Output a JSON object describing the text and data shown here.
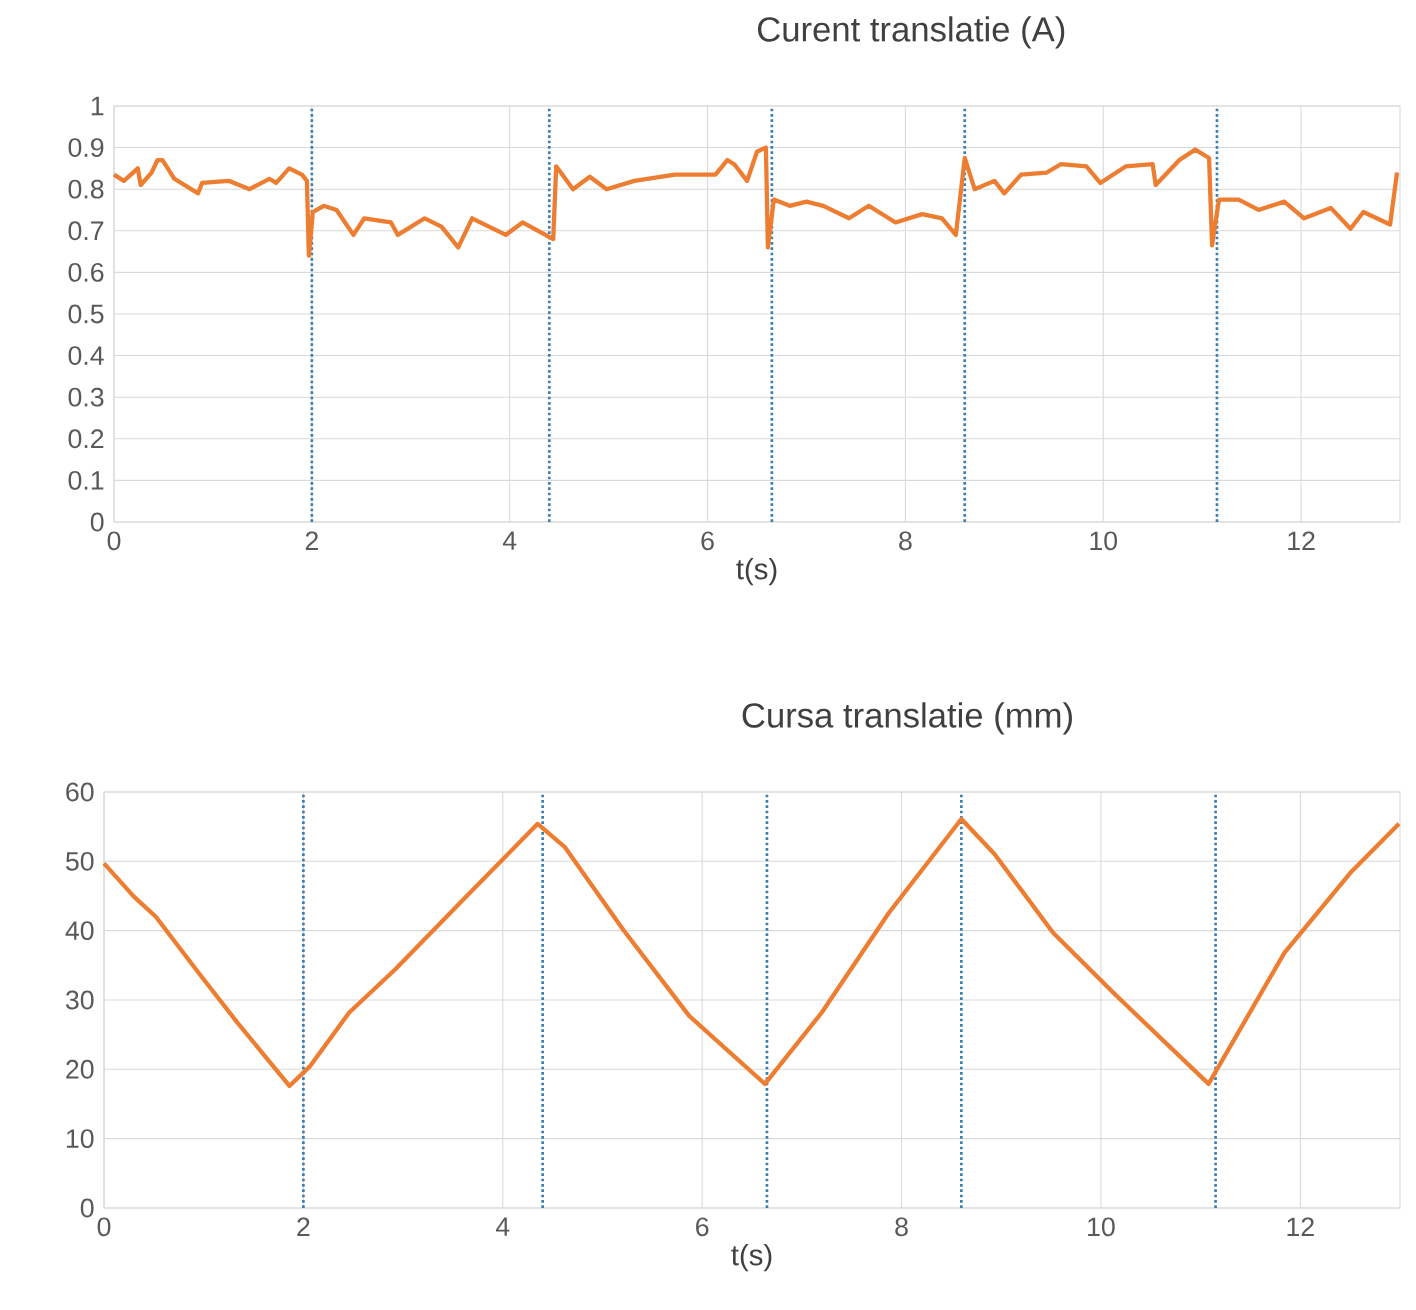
{
  "chart_data": [
    {
      "type": "line",
      "title": "Curent translatie (A)",
      "xlabel": "t(s)",
      "color": "#ed7d31",
      "grid": true,
      "x": [
        0,
        0.1,
        0.24,
        0.27,
        0.38,
        0.44,
        0.49,
        0.61,
        0.85,
        0.89,
        1.16,
        1.37,
        1.57,
        1.64,
        1.77,
        1.9,
        1.95,
        1.97,
        2.01,
        2.12,
        2.25,
        2.42,
        2.53,
        2.8,
        2.87,
        3.14,
        3.31,
        3.48,
        3.62,
        3.96,
        4.13,
        4.44,
        4.47,
        4.64,
        4.81,
        4.98,
        5.26,
        5.67,
        6.08,
        6.2,
        6.27,
        6.4,
        6.5,
        6.59,
        6.61,
        6.67,
        6.83,
        7.0,
        7.17,
        7.43,
        7.63,
        7.9,
        8.17,
        8.37,
        8.51,
        8.6,
        8.7,
        8.9,
        9.0,
        9.17,
        9.43,
        9.57,
        9.83,
        9.97,
        10.23,
        10.5,
        10.53,
        10.77,
        10.93,
        11.07,
        11.1,
        11.17,
        11.37,
        11.57,
        11.83,
        12.03,
        12.3,
        12.5,
        12.63,
        12.9,
        12.97
      ],
      "values": [
        0.835,
        0.82,
        0.85,
        0.81,
        0.84,
        0.87,
        0.87,
        0.825,
        0.79,
        0.815,
        0.82,
        0.8,
        0.825,
        0.815,
        0.85,
        0.835,
        0.82,
        0.64,
        0.745,
        0.76,
        0.75,
        0.69,
        0.73,
        0.72,
        0.69,
        0.73,
        0.71,
        0.66,
        0.73,
        0.69,
        0.72,
        0.68,
        0.855,
        0.8,
        0.83,
        0.8,
        0.82,
        0.835,
        0.835,
        0.87,
        0.86,
        0.82,
        0.89,
        0.9,
        0.66,
        0.775,
        0.76,
        0.77,
        0.76,
        0.73,
        0.76,
        0.72,
        0.74,
        0.73,
        0.69,
        0.875,
        0.8,
        0.82,
        0.79,
        0.835,
        0.84,
        0.86,
        0.855,
        0.815,
        0.855,
        0.86,
        0.81,
        0.87,
        0.895,
        0.875,
        0.665,
        0.775,
        0.775,
        0.75,
        0.77,
        0.73,
        0.755,
        0.705,
        0.745,
        0.715,
        0.84
      ],
      "xlim": [
        0,
        13
      ],
      "xticks": [
        0,
        2,
        4,
        6,
        8,
        10,
        12
      ],
      "ylim": [
        0,
        1
      ],
      "yticks": [
        0,
        0.1,
        0.2,
        0.3,
        0.4,
        0.5,
        0.6,
        0.7,
        0.8,
        0.9,
        1
      ],
      "ref_lines": [
        {
          "axis": "x",
          "value": 2.0,
          "color": "#3b7fb0",
          "line_style": "dotted"
        },
        {
          "axis": "x",
          "value": 4.4,
          "color": "#3b7fb0",
          "line_style": "dotted"
        },
        {
          "axis": "x",
          "value": 6.65,
          "color": "#3b7fb0",
          "line_style": "dotted"
        },
        {
          "axis": "x",
          "value": 8.6,
          "color": "#3b7fb0",
          "line_style": "dotted"
        },
        {
          "axis": "x",
          "value": 11.15,
          "color": "#3b7fb0",
          "line_style": "dotted"
        }
      ]
    },
    {
      "type": "line",
      "title": "Cursa translatie (mm)",
      "xlabel": "t(s)",
      "color": "#ed7d31",
      "grid": true,
      "x": [
        0,
        0.3,
        0.52,
        0.95,
        1.34,
        1.86,
        2.07,
        2.46,
        2.92,
        3.57,
        4.35,
        4.62,
        5.21,
        5.87,
        6.63,
        7.2,
        7.87,
        8.6,
        8.93,
        9.52,
        10.12,
        11.08,
        11.84,
        12.5,
        12.99
      ],
      "values": [
        49.7,
        44.9,
        42.0,
        33.9,
        26.7,
        17.6,
        20.5,
        28.2,
        34.4,
        44.0,
        55.4,
        52.1,
        40.1,
        27.7,
        17.9,
        28.2,
        42.5,
        56.1,
        51.1,
        39.7,
        31.1,
        17.9,
        36.8,
        48.3,
        55.4
      ],
      "xlim": [
        0,
        13
      ],
      "xticks": [
        0,
        2,
        4,
        6,
        8,
        10,
        12
      ],
      "ylim": [
        0,
        60
      ],
      "yticks": [
        0,
        10,
        20,
        30,
        40,
        50,
        60
      ],
      "ref_lines": [
        {
          "axis": "x",
          "value": 2.0,
          "color": "#3b7fb0",
          "line_style": "dotted"
        },
        {
          "axis": "x",
          "value": 4.4,
          "color": "#3b7fb0",
          "line_style": "dotted"
        },
        {
          "axis": "x",
          "value": 6.65,
          "color": "#3b7fb0",
          "line_style": "dotted"
        },
        {
          "axis": "x",
          "value": 8.6,
          "color": "#3b7fb0",
          "line_style": "dotted"
        },
        {
          "axis": "x",
          "value": 11.15,
          "color": "#3b7fb0",
          "line_style": "dotted"
        }
      ]
    }
  ]
}
